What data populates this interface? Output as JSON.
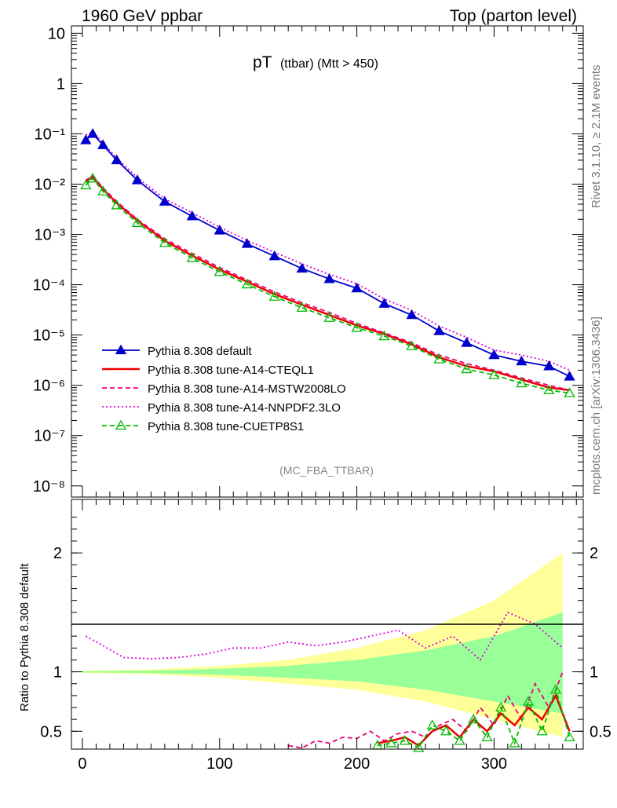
{
  "header": {
    "left": "1960 GeV ppbar",
    "right": "Top (parton level)"
  },
  "plot_title": {
    "main": "pT",
    "sub": "(ttbar) (Mtt > 450)"
  },
  "analysis_label": "(MC_FBA_TTBAR)",
  "side_labels": {
    "rivet": "Rivet 3.1.10, ≥ 2.1M events",
    "site": "mcplots.cern.ch [arXiv:1306.3436]"
  },
  "ratio_ylabel": "Ratio to Pythia 8.308 default",
  "chart_data": [
    {
      "type": "line",
      "panel": "main",
      "yscale": "log",
      "xlim": [
        -8,
        365
      ],
      "ylim": [
        6e-09,
        14
      ],
      "y_tick_labels": [
        "10",
        "1",
        "10⁻¹",
        "10⁻²",
        "10⁻³",
        "10⁻⁴",
        "10⁻⁵",
        "10⁻⁶",
        "10⁻⁷",
        "10⁻⁸"
      ],
      "y_tick_values": [
        10,
        1,
        0.1,
        0.01,
        0.001,
        0.0001,
        1e-05,
        1e-06,
        1e-07,
        1e-08
      ],
      "series": [
        {
          "name": "Pythia 8.308 default",
          "color": "#0000cc",
          "style": "solid-triangle",
          "x": [
            2.5,
            7.5,
            15,
            25,
            40,
            60,
            80,
            100,
            120,
            140,
            160,
            180,
            200,
            220,
            240,
            260,
            280,
            300,
            320,
            340,
            355
          ],
          "y": [
            0.075,
            0.1,
            0.06,
            0.03,
            0.012,
            0.0045,
            0.0023,
            0.0012,
            0.00065,
            0.00037,
            0.00021,
            0.00013,
            8.5e-05,
            4.2e-05,
            2.5e-05,
            1.2e-05,
            7e-06,
            4e-06,
            3e-06,
            2.4e-06,
            1.5e-06
          ]
        },
        {
          "name": "Pythia 8.308 tune-A14-CTEQL1",
          "color": "#ee0000",
          "style": "solid",
          "x": [
            2.5,
            7.5,
            15,
            25,
            40,
            60,
            80,
            100,
            120,
            140,
            160,
            180,
            200,
            220,
            240,
            260,
            280,
            300,
            320,
            340,
            355
          ],
          "y": [
            0.011,
            0.014,
            0.008,
            0.0042,
            0.0019,
            0.00075,
            0.00038,
            0.0002,
            0.000115,
            6.5e-05,
            4e-05,
            2.5e-05,
            1.55e-05,
            1.05e-05,
            6.5e-06,
            3.6e-06,
            2.4e-06,
            1.9e-06,
            1.3e-06,
            9e-07,
            8e-07
          ]
        },
        {
          "name": "Pythia 8.308 tune-A14-MSTW2008LO",
          "color": "#ee0077",
          "style": "dashed",
          "x": [
            2.5,
            7.5,
            15,
            25,
            40,
            60,
            80,
            100,
            120,
            140,
            160,
            180,
            200,
            220,
            240,
            260,
            280,
            300,
            320,
            340,
            355
          ],
          "y": [
            0.012,
            0.0145,
            0.0085,
            0.0045,
            0.002,
            0.00082,
            0.00042,
            0.00022,
            0.000125,
            7.2e-05,
            4.4e-05,
            2.8e-05,
            1.7e-05,
            1.1e-05,
            7e-06,
            4e-06,
            2.7e-06,
            2e-06,
            1.4e-06,
            1e-06,
            8e-07
          ]
        },
        {
          "name": "Pythia 8.308 tune-A14-NNPDF2.3LO",
          "color": "#dd00dd",
          "style": "dotted",
          "x": [
            2.5,
            7.5,
            15,
            25,
            40,
            60,
            80,
            100,
            120,
            140,
            160,
            180,
            200,
            220,
            240,
            260,
            280,
            300,
            320,
            340,
            355
          ],
          "y": [
            0.095,
            0.11,
            0.066,
            0.033,
            0.0135,
            0.0051,
            0.0027,
            0.0014,
            0.00076,
            0.00044,
            0.00026,
            0.00016,
            0.000105,
            5.2e-05,
            3.1e-05,
            1.5e-05,
            9e-06,
            5e-06,
            4e-06,
            3e-06,
            2e-06
          ]
        },
        {
          "name": "Pythia 8.308 tune-CUETP8S1",
          "color": "#00bb00",
          "style": "dashed-open-triangle",
          "x": [
            2.5,
            7.5,
            15,
            25,
            40,
            60,
            80,
            100,
            120,
            140,
            160,
            180,
            200,
            220,
            240,
            260,
            280,
            300,
            320,
            340,
            355
          ],
          "y": [
            0.0095,
            0.013,
            0.0072,
            0.0038,
            0.0017,
            0.00068,
            0.00034,
            0.00018,
            0.000102,
            5.8e-05,
            3.5e-05,
            2.2e-05,
            1.4e-05,
            9.5e-06,
            6e-06,
            3.3e-06,
            2.1e-06,
            1.6e-06,
            1.1e-06,
            8e-07,
            7e-07
          ]
        }
      ]
    },
    {
      "type": "line",
      "panel": "ratio",
      "ylabel": "Ratio to Pythia 8.308 default",
      "xlim": [
        -8,
        365
      ],
      "ylim": [
        0.35,
        2.45
      ],
      "x_tick_labels": [
        "0",
        "100",
        "200",
        "300"
      ],
      "x_tick_values": [
        0,
        100,
        200,
        300
      ],
      "y_tick_labels": [
        "2",
        "1",
        "0.5"
      ],
      "y_tick_values": [
        2,
        1,
        0.5
      ],
      "bands": [
        {
          "color": "#ffff99",
          "x": [
            0,
            50,
            100,
            150,
            200,
            250,
            300,
            350
          ],
          "lo": [
            0.99,
            0.98,
            0.95,
            0.9,
            0.85,
            0.75,
            0.6,
            0.45
          ],
          "hi": [
            1.01,
            1.02,
            1.05,
            1.1,
            1.2,
            1.35,
            1.6,
            2.0
          ]
        },
        {
          "color": "#99ff99",
          "x": [
            0,
            50,
            100,
            150,
            200,
            250,
            300,
            350
          ],
          "lo": [
            0.995,
            0.99,
            0.975,
            0.95,
            0.92,
            0.85,
            0.75,
            0.65
          ],
          "hi": [
            1.005,
            1.01,
            1.025,
            1.05,
            1.1,
            1.18,
            1.3,
            1.5
          ]
        }
      ],
      "series": [
        {
          "name": "Pythia 8.308 tune-A14-NNPDF2.3LO",
          "color": "#dd00dd",
          "style": "dotted",
          "x": [
            2.5,
            15,
            30,
            50,
            70,
            90,
            110,
            130,
            150,
            170,
            190,
            210,
            230,
            250,
            270,
            290,
            310,
            330,
            350
          ],
          "y": [
            1.3,
            1.22,
            1.12,
            1.11,
            1.12,
            1.15,
            1.2,
            1.2,
            1.25,
            1.22,
            1.25,
            1.3,
            1.35,
            1.2,
            1.3,
            1.1,
            1.5,
            1.4,
            1.2
          ]
        },
        {
          "name": "Pythia 8.308 tune-A14-MSTW2008LO",
          "color": "#ee0077",
          "style": "dashed",
          "x": [
            150,
            160,
            170,
            180,
            190,
            200,
            210,
            220,
            230,
            240,
            250,
            260,
            270,
            280,
            290,
            300,
            310,
            320,
            330,
            340,
            350
          ],
          "y": [
            0.38,
            0.36,
            0.42,
            0.4,
            0.45,
            0.44,
            0.5,
            0.42,
            0.48,
            0.5,
            0.45,
            0.55,
            0.6,
            0.5,
            0.7,
            0.55,
            0.8,
            0.6,
            0.9,
            0.7,
            1.0
          ]
        },
        {
          "name": "Pythia 8.308 tune-A14-CTEQL1",
          "color": "#ee0000",
          "style": "solid",
          "x": [
            215,
            225,
            235,
            245,
            255,
            265,
            275,
            285,
            295,
            305,
            315,
            325,
            335,
            345,
            355
          ],
          "y": [
            0.4,
            0.42,
            0.45,
            0.38,
            0.5,
            0.55,
            0.45,
            0.6,
            0.5,
            0.65,
            0.55,
            0.7,
            0.6,
            0.8,
            0.5
          ]
        },
        {
          "name": "Pythia 8.308 tune-CUETP8S1",
          "color": "#00bb00",
          "style": "dashed-open-triangle",
          "x": [
            215,
            225,
            235,
            245,
            255,
            265,
            275,
            285,
            295,
            305,
            315,
            325,
            335,
            345,
            355
          ],
          "y": [
            0.38,
            0.4,
            0.42,
            0.36,
            0.55,
            0.5,
            0.42,
            0.6,
            0.45,
            0.7,
            0.4,
            0.75,
            0.5,
            0.85,
            0.45
          ]
        }
      ]
    }
  ]
}
